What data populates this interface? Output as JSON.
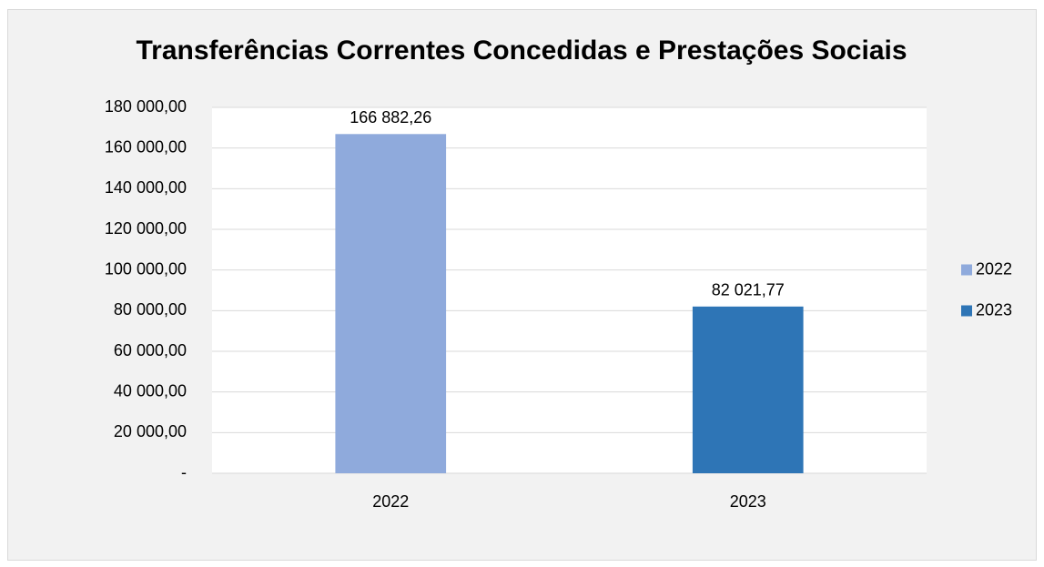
{
  "chart_data": {
    "type": "bar",
    "title": "Transferências Correntes Concedidas e Prestações Sociais",
    "categories": [
      "2022",
      "2023"
    ],
    "values": [
      166882.26,
      82021.77
    ],
    "value_labels": [
      "166 882,26",
      "82 021,77"
    ],
    "colors": [
      "#8faadc",
      "#2e75b6"
    ],
    "ylim": [
      0,
      180000
    ],
    "yticks": [
      {
        "value": 0,
        "label": "-"
      },
      {
        "value": 20000,
        "label": "20 000,00"
      },
      {
        "value": 40000,
        "label": "40 000,00"
      },
      {
        "value": 60000,
        "label": "60 000,00"
      },
      {
        "value": 80000,
        "label": "80 000,00"
      },
      {
        "value": 100000,
        "label": "100 000,00"
      },
      {
        "value": 120000,
        "label": "120 000,00"
      },
      {
        "value": 140000,
        "label": "140 000,00"
      },
      {
        "value": 160000,
        "label": "160 000,00"
      },
      {
        "value": 180000,
        "label": "180 000,00"
      }
    ],
    "grid": true,
    "legend": "right"
  }
}
